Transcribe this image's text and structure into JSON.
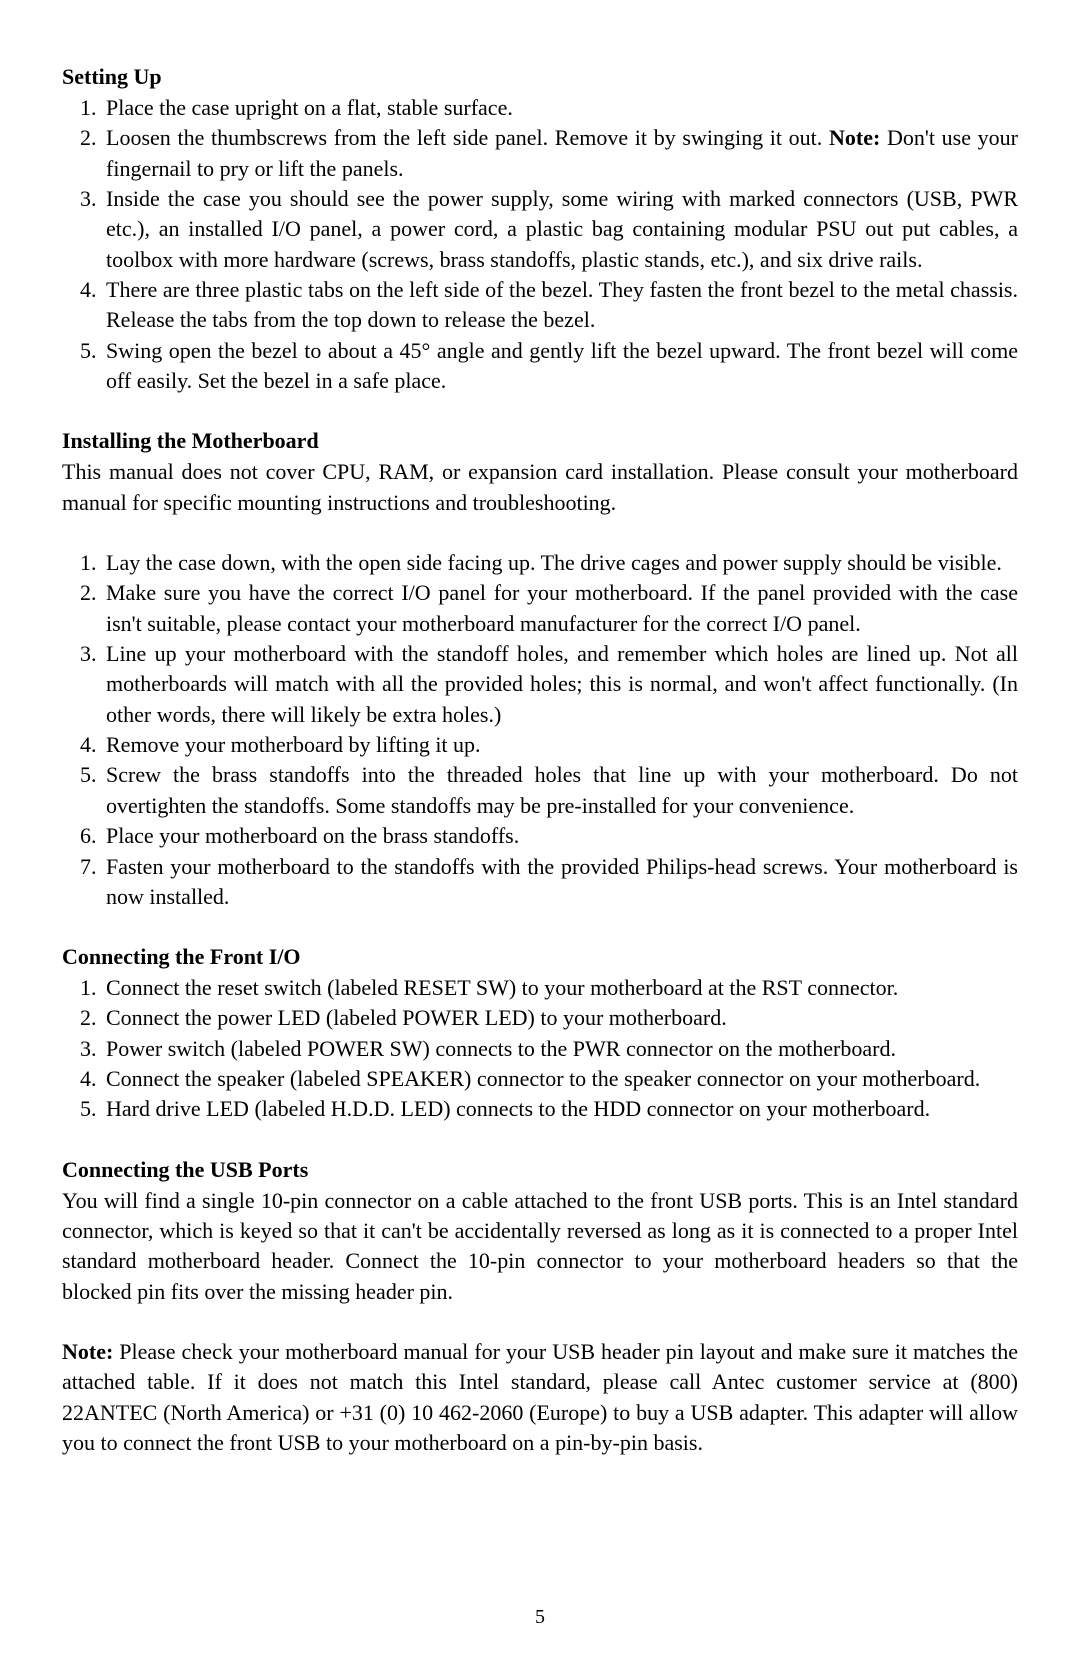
{
  "typography": {
    "font_family": "Garamond / Times-like serif",
    "body_fontsize_pt": 16,
    "heading_fontsize_pt": 16,
    "heading_weight": "bold",
    "line_height": 1.38,
    "text_color": "#000000",
    "background_color": "#ffffff",
    "justify": true
  },
  "page_number": "5",
  "sections": [
    {
      "heading": "Setting Up",
      "intro": null,
      "items": [
        "Place the case upright on a flat, stable surface.",
        "Loosen the thumbscrews from the left side panel.  Remove it by swinging it out. __BOLD__Note:__END__ Don't use your fingernail to pry or lift the panels.",
        "Inside the case you should see the power supply, some wiring with marked connectors (USB, PWR etc.), an installed I/O panel, a power cord, a plastic bag containing modular PSU out put cables, a toolbox with more hardware (screws, brass standoffs, plastic stands, etc.), and six drive rails.",
        "There are three plastic tabs on the left side of the bezel. They fasten the front bezel to the metal chassis. Release the tabs from the top down to release the bezel.",
        "Swing open the bezel to about a 45° angle and gently lift the bezel upward. The front bezel will come off easily.   Set the bezel in a safe place."
      ]
    },
    {
      "heading": "Installing the Motherboard",
      "intro": "This manual does not cover CPU, RAM, or expansion card installation. Please consult your motherboard manual for specific mounting instructions and troubleshooting.",
      "items": [
        "Lay the case down, with the open side facing up. The drive cages and power supply should be visible.",
        "Make sure you have the correct I/O panel for your motherboard. If the panel provided with the case isn't suitable, please contact your motherboard manufacturer for the correct I/O panel.",
        "Line up your motherboard with the standoff holes, and remember which holes are lined up. Not all motherboards will match with all the provided holes; this is normal, and won't affect functionally.  (In other words, there will likely be extra holes.)",
        "Remove your motherboard by lifting it up.",
        "Screw the brass standoffs into the threaded holes that line up with your motherboard. Do not overtighten the standoffs. Some standoffs may be pre-installed for your convenience.",
        "Place your motherboard on the brass standoffs.",
        "Fasten your motherboard to the standoffs with the provided Philips-head screws. Your motherboard is now installed."
      ]
    },
    {
      "heading": "Connecting the Front I/O",
      "intro": null,
      "items": [
        "Connect the reset switch (labeled RESET SW) to your motherboard at the RST connector.",
        "Connect the power LED (labeled POWER LED) to your motherboard.",
        "Power switch (labeled POWER SW) connects to the PWR connector on the motherboard.",
        "Connect the speaker (labeled SPEAKER) connector to the speaker connector on your motherboard.",
        "Hard drive LED (labeled H.D.D. LED) connects to the HDD connector on your motherboard."
      ]
    },
    {
      "heading": "Connecting the USB Ports",
      "intro": "You will find a single 10-pin connector on a cable attached to the front USB ports. This is an Intel standard connector, which is keyed so that it can't be accidentally reversed as long as it is connected to a proper Intel standard motherboard header. Connect the 10-pin connector to your motherboard headers so that the blocked pin fits over the missing header pin.",
      "items": []
    }
  ],
  "trailing_note": {
    "label": "Note:",
    "text": " Please check your motherboard manual for your USB header pin layout and make sure it matches the attached table. If it does not match this Intel standard, please call Antec customer service at (800) 22ANTEC (North America) or +31 (0) 10 462-2060 (Europe) to buy a USB adapter. This adapter will allow you to connect the front USB to your motherboard on a pin-by-pin basis."
  }
}
